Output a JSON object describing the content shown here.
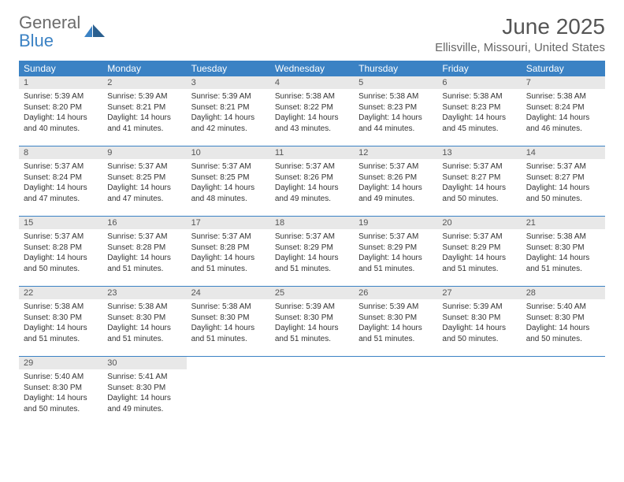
{
  "logo": {
    "word1": "General",
    "word2": "Blue"
  },
  "title": "June 2025",
  "subtitle": "Ellisville, Missouri, United States",
  "colors": {
    "header_bg": "#3b82c4",
    "header_text": "#ffffff",
    "daynum_bg": "#e8e8e8",
    "rule": "#3b82c4",
    "body_text": "#333333",
    "title_text": "#555555"
  },
  "dow": [
    "Sunday",
    "Monday",
    "Tuesday",
    "Wednesday",
    "Thursday",
    "Friday",
    "Saturday"
  ],
  "weeks": [
    [
      {
        "n": "1",
        "sr": "5:39 AM",
        "ss": "8:20 PM",
        "dl": "14 hours and 40 minutes."
      },
      {
        "n": "2",
        "sr": "5:39 AM",
        "ss": "8:21 PM",
        "dl": "14 hours and 41 minutes."
      },
      {
        "n": "3",
        "sr": "5:39 AM",
        "ss": "8:21 PM",
        "dl": "14 hours and 42 minutes."
      },
      {
        "n": "4",
        "sr": "5:38 AM",
        "ss": "8:22 PM",
        "dl": "14 hours and 43 minutes."
      },
      {
        "n": "5",
        "sr": "5:38 AM",
        "ss": "8:23 PM",
        "dl": "14 hours and 44 minutes."
      },
      {
        "n": "6",
        "sr": "5:38 AM",
        "ss": "8:23 PM",
        "dl": "14 hours and 45 minutes."
      },
      {
        "n": "7",
        "sr": "5:38 AM",
        "ss": "8:24 PM",
        "dl": "14 hours and 46 minutes."
      }
    ],
    [
      {
        "n": "8",
        "sr": "5:37 AM",
        "ss": "8:24 PM",
        "dl": "14 hours and 47 minutes."
      },
      {
        "n": "9",
        "sr": "5:37 AM",
        "ss": "8:25 PM",
        "dl": "14 hours and 47 minutes."
      },
      {
        "n": "10",
        "sr": "5:37 AM",
        "ss": "8:25 PM",
        "dl": "14 hours and 48 minutes."
      },
      {
        "n": "11",
        "sr": "5:37 AM",
        "ss": "8:26 PM",
        "dl": "14 hours and 49 minutes."
      },
      {
        "n": "12",
        "sr": "5:37 AM",
        "ss": "8:26 PM",
        "dl": "14 hours and 49 minutes."
      },
      {
        "n": "13",
        "sr": "5:37 AM",
        "ss": "8:27 PM",
        "dl": "14 hours and 50 minutes."
      },
      {
        "n": "14",
        "sr": "5:37 AM",
        "ss": "8:27 PM",
        "dl": "14 hours and 50 minutes."
      }
    ],
    [
      {
        "n": "15",
        "sr": "5:37 AM",
        "ss": "8:28 PM",
        "dl": "14 hours and 50 minutes."
      },
      {
        "n": "16",
        "sr": "5:37 AM",
        "ss": "8:28 PM",
        "dl": "14 hours and 51 minutes."
      },
      {
        "n": "17",
        "sr": "5:37 AM",
        "ss": "8:28 PM",
        "dl": "14 hours and 51 minutes."
      },
      {
        "n": "18",
        "sr": "5:37 AM",
        "ss": "8:29 PM",
        "dl": "14 hours and 51 minutes."
      },
      {
        "n": "19",
        "sr": "5:37 AM",
        "ss": "8:29 PM",
        "dl": "14 hours and 51 minutes."
      },
      {
        "n": "20",
        "sr": "5:37 AM",
        "ss": "8:29 PM",
        "dl": "14 hours and 51 minutes."
      },
      {
        "n": "21",
        "sr": "5:38 AM",
        "ss": "8:30 PM",
        "dl": "14 hours and 51 minutes."
      }
    ],
    [
      {
        "n": "22",
        "sr": "5:38 AM",
        "ss": "8:30 PM",
        "dl": "14 hours and 51 minutes."
      },
      {
        "n": "23",
        "sr": "5:38 AM",
        "ss": "8:30 PM",
        "dl": "14 hours and 51 minutes."
      },
      {
        "n": "24",
        "sr": "5:38 AM",
        "ss": "8:30 PM",
        "dl": "14 hours and 51 minutes."
      },
      {
        "n": "25",
        "sr": "5:39 AM",
        "ss": "8:30 PM",
        "dl": "14 hours and 51 minutes."
      },
      {
        "n": "26",
        "sr": "5:39 AM",
        "ss": "8:30 PM",
        "dl": "14 hours and 51 minutes."
      },
      {
        "n": "27",
        "sr": "5:39 AM",
        "ss": "8:30 PM",
        "dl": "14 hours and 50 minutes."
      },
      {
        "n": "28",
        "sr": "5:40 AM",
        "ss": "8:30 PM",
        "dl": "14 hours and 50 minutes."
      }
    ],
    [
      {
        "n": "29",
        "sr": "5:40 AM",
        "ss": "8:30 PM",
        "dl": "14 hours and 50 minutes."
      },
      {
        "n": "30",
        "sr": "5:41 AM",
        "ss": "8:30 PM",
        "dl": "14 hours and 49 minutes."
      },
      null,
      null,
      null,
      null,
      null
    ]
  ],
  "labels": {
    "sunrise": "Sunrise:",
    "sunset": "Sunset:",
    "daylight": "Daylight:"
  }
}
